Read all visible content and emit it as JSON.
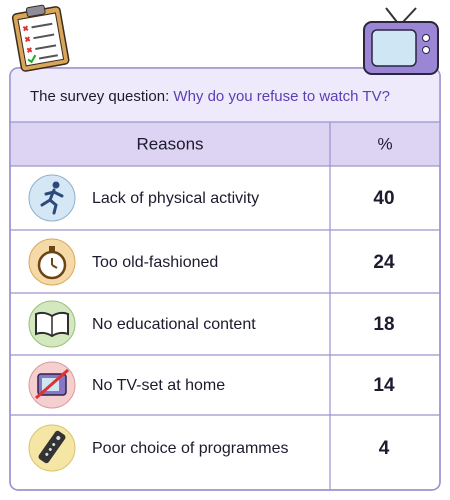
{
  "header": {
    "label": "The survey question:",
    "question": "Why do you refuse to watch TV?"
  },
  "table": {
    "columns": [
      "Reasons",
      "%"
    ],
    "rows": [
      [
        "Lack of physical activity",
        40
      ],
      [
        "Too old-fashioned",
        24
      ],
      [
        "No educational content",
        18
      ],
      [
        "No TV-set at home",
        14
      ],
      [
        "Poor choice of programmes",
        4
      ]
    ]
  }
}
